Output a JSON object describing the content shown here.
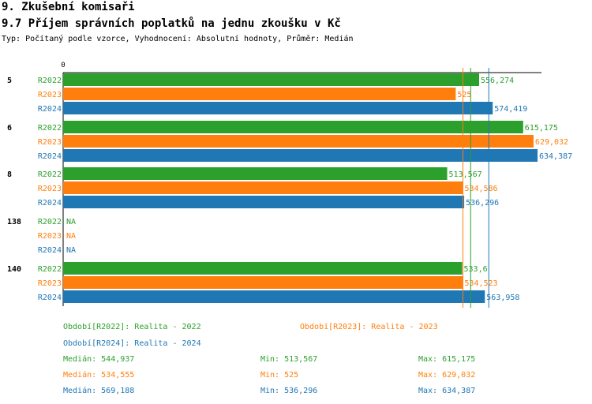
{
  "header": {
    "title": "9. Zkušební komisaři",
    "subtitle": "9.7 Příjem správních poplatků na jednu zkoušku v Kč",
    "type_line": "Typ: Počítaný podle vzorce, Vyhodnocení: Absolutní hodnoty, Průměr: Medián"
  },
  "chart_data": {
    "type": "bar",
    "orientation": "horizontal",
    "x_axis_label": "0",
    "categories": [
      "5",
      "6",
      "8",
      "138",
      "140"
    ],
    "series": [
      {
        "name": "R2022",
        "color": "#2ca02c",
        "values": [
          556.274,
          615.175,
          513.567,
          null,
          533.6
        ],
        "labels": [
          "556,274",
          "615,175",
          "513,567",
          "NA",
          "533,6"
        ]
      },
      {
        "name": "R2023",
        "color": "#ff7f0e",
        "values": [
          525,
          629.032,
          534.586,
          null,
          534.523
        ],
        "labels": [
          "525",
          "629,032",
          "534,586",
          "NA",
          "534,523"
        ]
      },
      {
        "name": "R2024",
        "color": "#1f77b4",
        "values": [
          574.419,
          634.387,
          536.296,
          null,
          563.958
        ],
        "labels": [
          "574,419",
          "634,387",
          "536,296",
          "NA",
          "563,958"
        ]
      }
    ],
    "xlim": [
      0,
      634.387
    ],
    "reference_lines": [
      544.937,
      534.555,
      569.188
    ]
  },
  "legend": [
    {
      "text": "Období[R2022]: Realita - 2022",
      "color": "#2ca02c"
    },
    {
      "text": "Období[R2023]: Realita - 2023",
      "color": "#ff7f0e"
    },
    {
      "text": "Období[R2024]: Realita - 2024",
      "color": "#1f77b4"
    }
  ],
  "stats": [
    {
      "color": "#2ca02c",
      "median": "Medián: 544,937",
      "min": "Min: 513,567",
      "max": "Max: 615,175"
    },
    {
      "color": "#ff7f0e",
      "median": "Medián: 534,555",
      "min": "Min: 525",
      "max": "Max: 629,032"
    },
    {
      "color": "#1f77b4",
      "median": "Medián: 569,188",
      "min": "Min: 536,296",
      "max": "Max: 634,387"
    }
  ]
}
